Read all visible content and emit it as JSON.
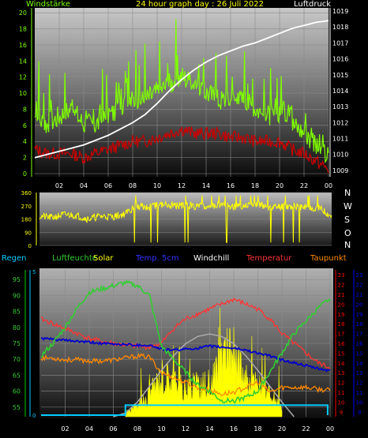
{
  "header": {
    "left": "Windstärke",
    "center": "24 hour graph day : 26 Juli 2022",
    "right": "Luftdruck"
  },
  "legend_row": {
    "regen": "Regen",
    "luftfeuchte": "Luftfeuchte",
    "solar": "Solar",
    "temp5cm": "Temp. 5cm",
    "windchill": "Windchill",
    "temperatur": "Temperatur",
    "taupunkt": "Taupunkt"
  },
  "direction_labels": [
    "N",
    "W",
    "S",
    "O",
    "N"
  ],
  "colors": {
    "wind": "#7fff00",
    "gust_dark": "#cc0000",
    "pressure": "#ffffff",
    "direction": "#ffff00",
    "humidity": "#33cc33",
    "solar": "#ffff00",
    "solar_max": "#aaaaaa",
    "temp5cm": "#0000cc",
    "temperature": "#ff3333",
    "dewpoint": "#ff8800",
    "rain": "#00ccff",
    "green_axis": "#00cc00",
    "red_axis": "#ff0000",
    "blue_axis": "#0000ff"
  },
  "chart_data": [
    {
      "type": "line",
      "x_ticks": [
        "02",
        "04",
        "06",
        "08",
        "10",
        "12",
        "14",
        "16",
        "18",
        "20",
        "22",
        "00"
      ],
      "y_left_ticks": [
        "0",
        "2",
        "4",
        "6",
        "8",
        "10",
        "12",
        "14",
        "16",
        "18",
        "20"
      ],
      "y_right_ticks": [
        "1009",
        "1010",
        "1011",
        "1012",
        "1013",
        "1014",
        "1015",
        "1016",
        "1017",
        "1018",
        "1019"
      ],
      "ylim_left": [
        0,
        21
      ],
      "ylim_right": [
        1008.6,
        1019.2
      ],
      "series": [
        {
          "key": "pressure",
          "axis": "right",
          "x": [
            0,
            1,
            2,
            3,
            4,
            5,
            6,
            7,
            8,
            9,
            10,
            11,
            12,
            13,
            14,
            15,
            16,
            17,
            18,
            19,
            20,
            21,
            22,
            23,
            24
          ],
          "values": [
            1009.8,
            1010.0,
            1010.2,
            1010.4,
            1010.6,
            1010.9,
            1011.2,
            1011.6,
            1012.0,
            1012.5,
            1013.2,
            1014.0,
            1014.7,
            1015.3,
            1015.8,
            1016.2,
            1016.5,
            1016.8,
            1017.0,
            1017.3,
            1017.6,
            1017.9,
            1018.1,
            1018.3,
            1018.4
          ]
        },
        {
          "key": "wind",
          "axis": "left",
          "x": [
            0,
            1,
            2,
            3,
            4,
            5,
            6,
            7,
            8,
            9,
            10,
            11,
            12,
            13,
            14,
            15,
            16,
            17,
            18,
            19,
            20,
            21,
            22,
            23,
            24
          ],
          "values": [
            7,
            6,
            7,
            8,
            6,
            6,
            7,
            8,
            9,
            9,
            10,
            11,
            12,
            11,
            10,
            9,
            9,
            9,
            8,
            7,
            7,
            6,
            5,
            3,
            2
          ]
        },
        {
          "key": "wind_gust",
          "axis": "left",
          "x": [
            0,
            1,
            2,
            3,
            4,
            5,
            6,
            7,
            8,
            9,
            10,
            11,
            12,
            13,
            14,
            15,
            16,
            17,
            18,
            19,
            20,
            21,
            22,
            23,
            24
          ],
          "values": [
            16,
            13,
            12,
            14,
            13,
            12,
            14,
            15,
            16,
            17,
            16,
            19,
            20,
            18,
            18,
            17,
            17,
            16,
            16,
            14,
            15,
            12,
            11,
            6,
            4
          ]
        },
        {
          "key": "wind_low",
          "axis": "left",
          "x": [
            0,
            1,
            2,
            3,
            4,
            5,
            6,
            7,
            8,
            9,
            10,
            11,
            12,
            13,
            14,
            15,
            16,
            17,
            18,
            19,
            20,
            21,
            22,
            23,
            24
          ],
          "values": [
            3,
            2.5,
            2.5,
            2.5,
            2,
            2.5,
            3,
            3.5,
            4,
            4,
            4.5,
            5,
            5.5,
            5,
            5,
            5,
            4.5,
            4.5,
            4,
            4,
            4,
            3,
            2.5,
            1.5,
            0.5
          ]
        }
      ]
    },
    {
      "type": "scatter",
      "x_ticks": [
        "02",
        "04",
        "06",
        "08",
        "10",
        "12",
        "14",
        "16",
        "18",
        "20",
        "22",
        "00"
      ],
      "y_ticks": [
        "0",
        "90",
        "180",
        "270",
        "360"
      ],
      "ylim": [
        0,
        360
      ],
      "series": [
        {
          "key": "direction",
          "x": [
            0,
            1,
            2,
            3,
            4,
            5,
            6,
            7,
            8,
            9,
            10,
            11,
            12,
            13,
            14,
            15,
            16,
            17,
            18,
            19,
            20,
            21,
            22,
            23,
            24
          ],
          "values": [
            200,
            190,
            210,
            205,
            180,
            200,
            195,
            215,
            270,
            260,
            280,
            270,
            275,
            265,
            270,
            280,
            260,
            270,
            275,
            260,
            270,
            265,
            260,
            255,
            200
          ]
        }
      ]
    },
    {
      "type": "line",
      "x_ticks": [
        "02",
        "04",
        "06",
        "08",
        "10",
        "12",
        "14",
        "16",
        "18",
        "20",
        "22",
        "00"
      ],
      "y_humidity_ticks": [
        "55",
        "60",
        "65",
        "70",
        "75",
        "80",
        "85",
        "90",
        "95"
      ],
      "y_rain_ticks": [
        "0",
        "5"
      ],
      "y_temp_ticks": [
        "9",
        "10",
        "11",
        "12",
        "13",
        "14",
        "15",
        "16",
        "17",
        "18",
        "19",
        "20",
        "21",
        "22",
        "23"
      ],
      "y_temp5cm_ticks": [
        "9",
        "10",
        "11",
        "12",
        "13",
        "14",
        "15",
        "16",
        "17",
        "18",
        "19",
        "20",
        "21",
        "22",
        "23"
      ],
      "series": [
        {
          "key": "humidity",
          "x": [
            0,
            1,
            2,
            3,
            4,
            5,
            6,
            7,
            8,
            9,
            10,
            11,
            12,
            13,
            14,
            15,
            16,
            17,
            18,
            19,
            20,
            21,
            22,
            23,
            24
          ],
          "values": [
            71,
            75,
            80,
            86,
            91,
            92,
            93,
            94,
            93,
            90,
            74,
            70,
            66,
            62,
            60,
            57,
            57,
            58,
            60,
            66,
            72,
            78,
            82,
            86,
            89
          ]
        },
        {
          "key": "temperature",
          "x": [
            0,
            1,
            2,
            3,
            4,
            5,
            6,
            7,
            8,
            9,
            10,
            11,
            12,
            13,
            14,
            15,
            16,
            17,
            18,
            19,
            20,
            21,
            22,
            23,
            24
          ],
          "values": [
            18.5,
            18,
            17.5,
            17,
            16.5,
            16.2,
            16,
            15.8,
            15.7,
            15.6,
            16,
            17.5,
            18.5,
            19,
            19.5,
            20,
            20.5,
            20,
            19.5,
            18.5,
            17,
            16,
            15,
            14,
            13.5
          ]
        },
        {
          "key": "dewpoint",
          "x": [
            0,
            1,
            2,
            3,
            4,
            5,
            6,
            7,
            8,
            9,
            10,
            11,
            12,
            13,
            14,
            15,
            16,
            17,
            18,
            19,
            20,
            21,
            22,
            23,
            24
          ],
          "values": [
            14.5,
            14.5,
            14.3,
            14.3,
            14.2,
            14.2,
            14.3,
            14.5,
            14.7,
            14.6,
            13,
            12.5,
            12,
            11.5,
            11.2,
            10.8,
            11,
            11.5,
            12,
            11,
            11.5,
            11.5,
            11.5,
            11.3,
            11.2
          ]
        },
        {
          "key": "temp5cm",
          "x": [
            0,
            1,
            2,
            3,
            4,
            5,
            6,
            7,
            8,
            9,
            10,
            11,
            12,
            13,
            14,
            15,
            16,
            17,
            18,
            19,
            20,
            21,
            22,
            23,
            24
          ],
          "values": [
            16.5,
            16.4,
            16.3,
            16.2,
            16.1,
            16.0,
            15.9,
            15.9,
            15.8,
            15.8,
            15.4,
            15.3,
            15.4,
            15.5,
            15.7,
            15.6,
            15.5,
            15.3,
            15.0,
            14.7,
            14.3,
            14.0,
            13.7,
            13.4,
            13.2
          ]
        },
        {
          "key": "solar_max",
          "x": [
            6,
            7,
            8,
            9,
            10,
            11,
            12,
            13,
            14,
            15,
            16,
            17,
            18,
            19,
            20,
            21
          ],
          "values": [
            0,
            0.3,
            1.2,
            2.5,
            3.8,
            5,
            6,
            6.6,
            6.8,
            6.6,
            6,
            5,
            3.8,
            2.5,
            1.2,
            0
          ]
        },
        {
          "key": "solar",
          "x": [
            7,
            8,
            9,
            10,
            11,
            12,
            13,
            14,
            15,
            16,
            17,
            18,
            19,
            20
          ],
          "values": [
            0.4,
            1.0,
            2.0,
            4.0,
            3.5,
            2.5,
            3.0,
            2.8,
            5.0,
            6.5,
            3.5,
            3.0,
            2.0,
            0.8
          ]
        },
        {
          "key": "rain",
          "x": [
            0,
            7,
            7,
            23.8,
            23.8
          ],
          "values": [
            0,
            0,
            0.9,
            0.9,
            0
          ]
        }
      ]
    }
  ]
}
